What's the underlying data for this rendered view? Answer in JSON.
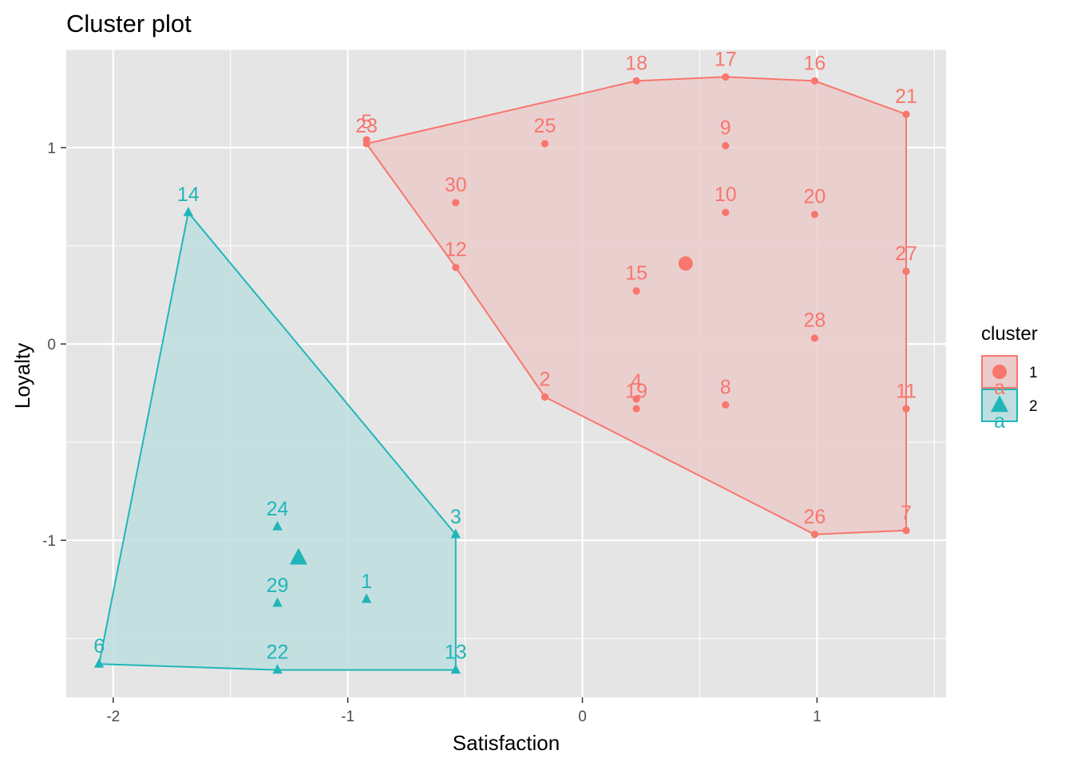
{
  "chart_data": {
    "type": "scatter",
    "title": "Cluster plot",
    "xlabel": "Satisfaction",
    "ylabel": "Loyalty",
    "xlim": [
      -2.2,
      1.55
    ],
    "ylim": [
      -1.8,
      1.5
    ],
    "x_ticks": [
      -2,
      -1,
      0,
      1
    ],
    "y_ticks": [
      -1,
      0,
      1
    ],
    "x_tick_labels": [
      "-2",
      "-1",
      "0",
      "1"
    ],
    "y_tick_labels": [
      "-1",
      "0",
      "1"
    ],
    "grid": true,
    "legend": {
      "title": "cluster",
      "position": "right",
      "entries": [
        {
          "label": "1",
          "color": "#F8766D",
          "shape": "circle"
        },
        {
          "label": "2",
          "color": "#00BFC4",
          "shape": "triangle"
        }
      ],
      "overlap_glyphs": [
        "a",
        "a"
      ]
    },
    "colors": {
      "panel": "#E5E5E5",
      "grid": "#FFFFFF",
      "cluster1": "#F8766D",
      "cluster1_fill": "#EBCBCB",
      "cluster2": "#20B6B9",
      "cluster2_fill": "#BEDEDF"
    },
    "series": [
      {
        "cluster": "1",
        "centroid": [
          0.44,
          0.41
        ],
        "hull": [
          "23",
          "18",
          "17",
          "16",
          "21",
          "7",
          "26",
          "2",
          "12"
        ],
        "points": [
          {
            "label": "2",
            "x": -0.16,
            "y": -0.27
          },
          {
            "label": "4",
            "x": 0.23,
            "y": -0.28
          },
          {
            "label": "5",
            "x": -0.92,
            "y": 1.04
          },
          {
            "label": "7",
            "x": 1.38,
            "y": -0.95
          },
          {
            "label": "8",
            "x": 0.61,
            "y": -0.31
          },
          {
            "label": "9",
            "x": 0.61,
            "y": 1.01
          },
          {
            "label": "10",
            "x": 0.61,
            "y": 0.67
          },
          {
            "label": "11",
            "x": 1.38,
            "y": -0.33
          },
          {
            "label": "12",
            "x": -0.54,
            "y": 0.39
          },
          {
            "label": "15",
            "x": 0.23,
            "y": 0.27
          },
          {
            "label": "16",
            "x": 0.99,
            "y": 1.34
          },
          {
            "label": "17",
            "x": 0.61,
            "y": 1.36
          },
          {
            "label": "18",
            "x": 0.23,
            "y": 1.34
          },
          {
            "label": "19",
            "x": 0.23,
            "y": -0.33
          },
          {
            "label": "20",
            "x": 0.99,
            "y": 0.66
          },
          {
            "label": "21",
            "x": 1.38,
            "y": 1.17
          },
          {
            "label": "23",
            "x": -0.92,
            "y": 1.02
          },
          {
            "label": "25",
            "x": -0.16,
            "y": 1.02
          },
          {
            "label": "26",
            "x": 0.99,
            "y": -0.97
          },
          {
            "label": "27",
            "x": 1.38,
            "y": 0.37
          },
          {
            "label": "28",
            "x": 0.99,
            "y": 0.03
          },
          {
            "label": "30",
            "x": -0.54,
            "y": 0.72
          }
        ]
      },
      {
        "cluster": "2",
        "centroid": [
          -1.21,
          -1.09
        ],
        "hull": [
          "14",
          "3",
          "13",
          "22",
          "6"
        ],
        "points": [
          {
            "label": "1",
            "x": -0.92,
            "y": -1.3
          },
          {
            "label": "3",
            "x": -0.54,
            "y": -0.97
          },
          {
            "label": "6",
            "x": -2.06,
            "y": -1.63
          },
          {
            "label": "13",
            "x": -0.54,
            "y": -1.66
          },
          {
            "label": "14",
            "x": -1.68,
            "y": 0.67
          },
          {
            "label": "22",
            "x": -1.3,
            "y": -1.66
          },
          {
            "label": "24",
            "x": -1.3,
            "y": -0.93
          },
          {
            "label": "29",
            "x": -1.3,
            "y": -1.32
          }
        ]
      }
    ]
  }
}
